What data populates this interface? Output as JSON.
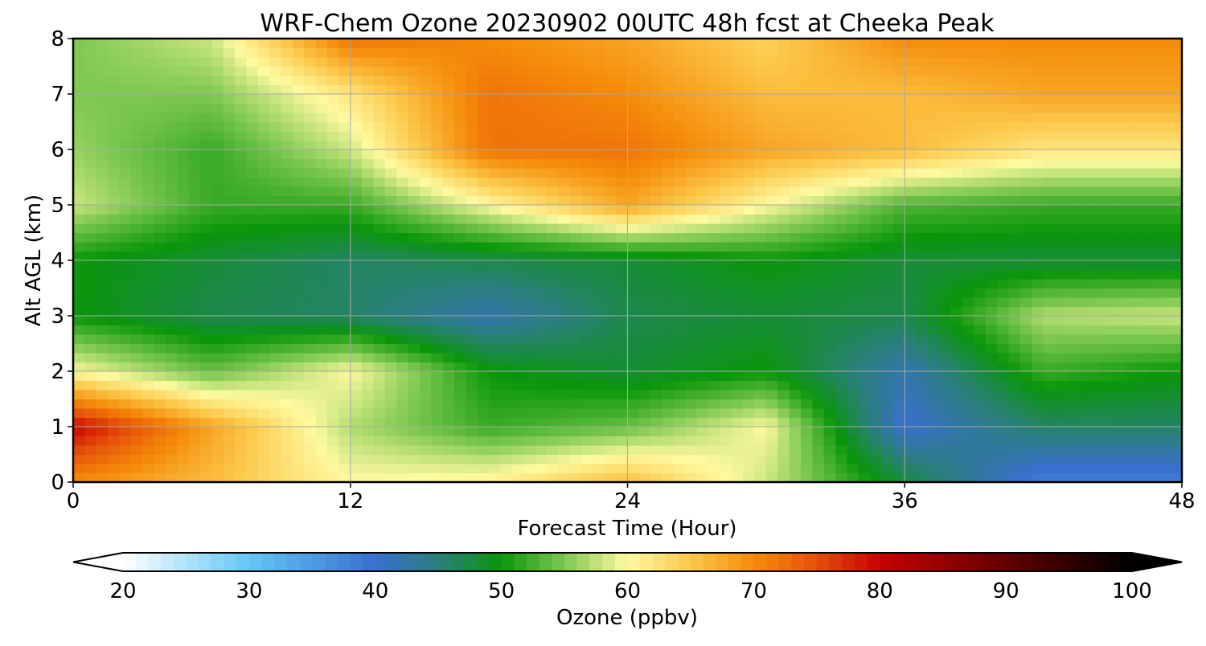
{
  "chart_data": {
    "type": "heatmap",
    "title": "WRF-Chem Ozone  20230902 00UTC 48h fcst at Cheeka Peak",
    "xlabel": "Forecast Time (Hour)",
    "ylabel": "Alt AGL (km)",
    "xlim": [
      0,
      48
    ],
    "ylim": [
      0,
      8
    ],
    "x_ticks": [
      0,
      12,
      24,
      36,
      48
    ],
    "x_tick_labels": [
      "0",
      "12",
      "24",
      "36",
      "48"
    ],
    "y_ticks": [
      0,
      1,
      2,
      3,
      4,
      5,
      6,
      7,
      8
    ],
    "y_tick_labels": [
      "0",
      "1",
      "2",
      "3",
      "4",
      "5",
      "6",
      "7",
      "8"
    ],
    "grid": true,
    "x": [
      0,
      6,
      12,
      18,
      24,
      30,
      36,
      42,
      48
    ],
    "y": [
      0,
      1,
      2,
      3,
      4,
      5,
      6,
      7,
      8
    ],
    "z": [
      [
        70,
        66,
        60,
        61,
        66,
        58,
        48,
        38,
        38
      ],
      [
        80,
        68,
        57,
        52,
        54,
        60,
        40,
        46,
        46
      ],
      [
        60,
        54,
        60,
        50,
        48,
        50,
        42,
        52,
        50
      ],
      [
        50,
        47,
        46,
        42,
        47,
        48,
        47,
        57,
        58
      ],
      [
        50,
        48,
        46,
        47,
        48,
        50,
        48,
        48,
        48
      ],
      [
        58,
        52,
        52,
        60,
        68,
        60,
        53,
        52,
        52
      ],
      [
        56,
        52,
        58,
        72,
        72,
        68,
        66,
        62,
        62
      ],
      [
        55,
        55,
        62,
        72,
        70,
        66,
        66,
        68,
        68
      ],
      [
        55,
        58,
        72,
        70,
        68,
        64,
        70,
        70,
        70
      ]
    ],
    "colorbar": {
      "label": "Ozone  (ppbv)",
      "min": 20,
      "max": 100,
      "ticks": [
        20,
        30,
        40,
        50,
        60,
        70,
        80,
        90,
        100
      ],
      "tick_labels": [
        "20",
        "30",
        "40",
        "50",
        "60",
        "70",
        "80",
        "90",
        "100"
      ],
      "extend": "both",
      "stops": [
        {
          "value": 20,
          "color": "#ffffff"
        },
        {
          "value": 30,
          "color": "#62c7f5"
        },
        {
          "value": 40,
          "color": "#3a6fd0"
        },
        {
          "value": 45,
          "color": "#2a7f7a"
        },
        {
          "value": 50,
          "color": "#0a960a"
        },
        {
          "value": 55,
          "color": "#7ec850"
        },
        {
          "value": 60,
          "color": "#fffaa0"
        },
        {
          "value": 65,
          "color": "#fcc84a"
        },
        {
          "value": 70,
          "color": "#f58c0a"
        },
        {
          "value": 75,
          "color": "#e6500a"
        },
        {
          "value": 80,
          "color": "#c80000"
        },
        {
          "value": 90,
          "color": "#640000"
        },
        {
          "value": 100,
          "color": "#000000"
        }
      ]
    }
  }
}
